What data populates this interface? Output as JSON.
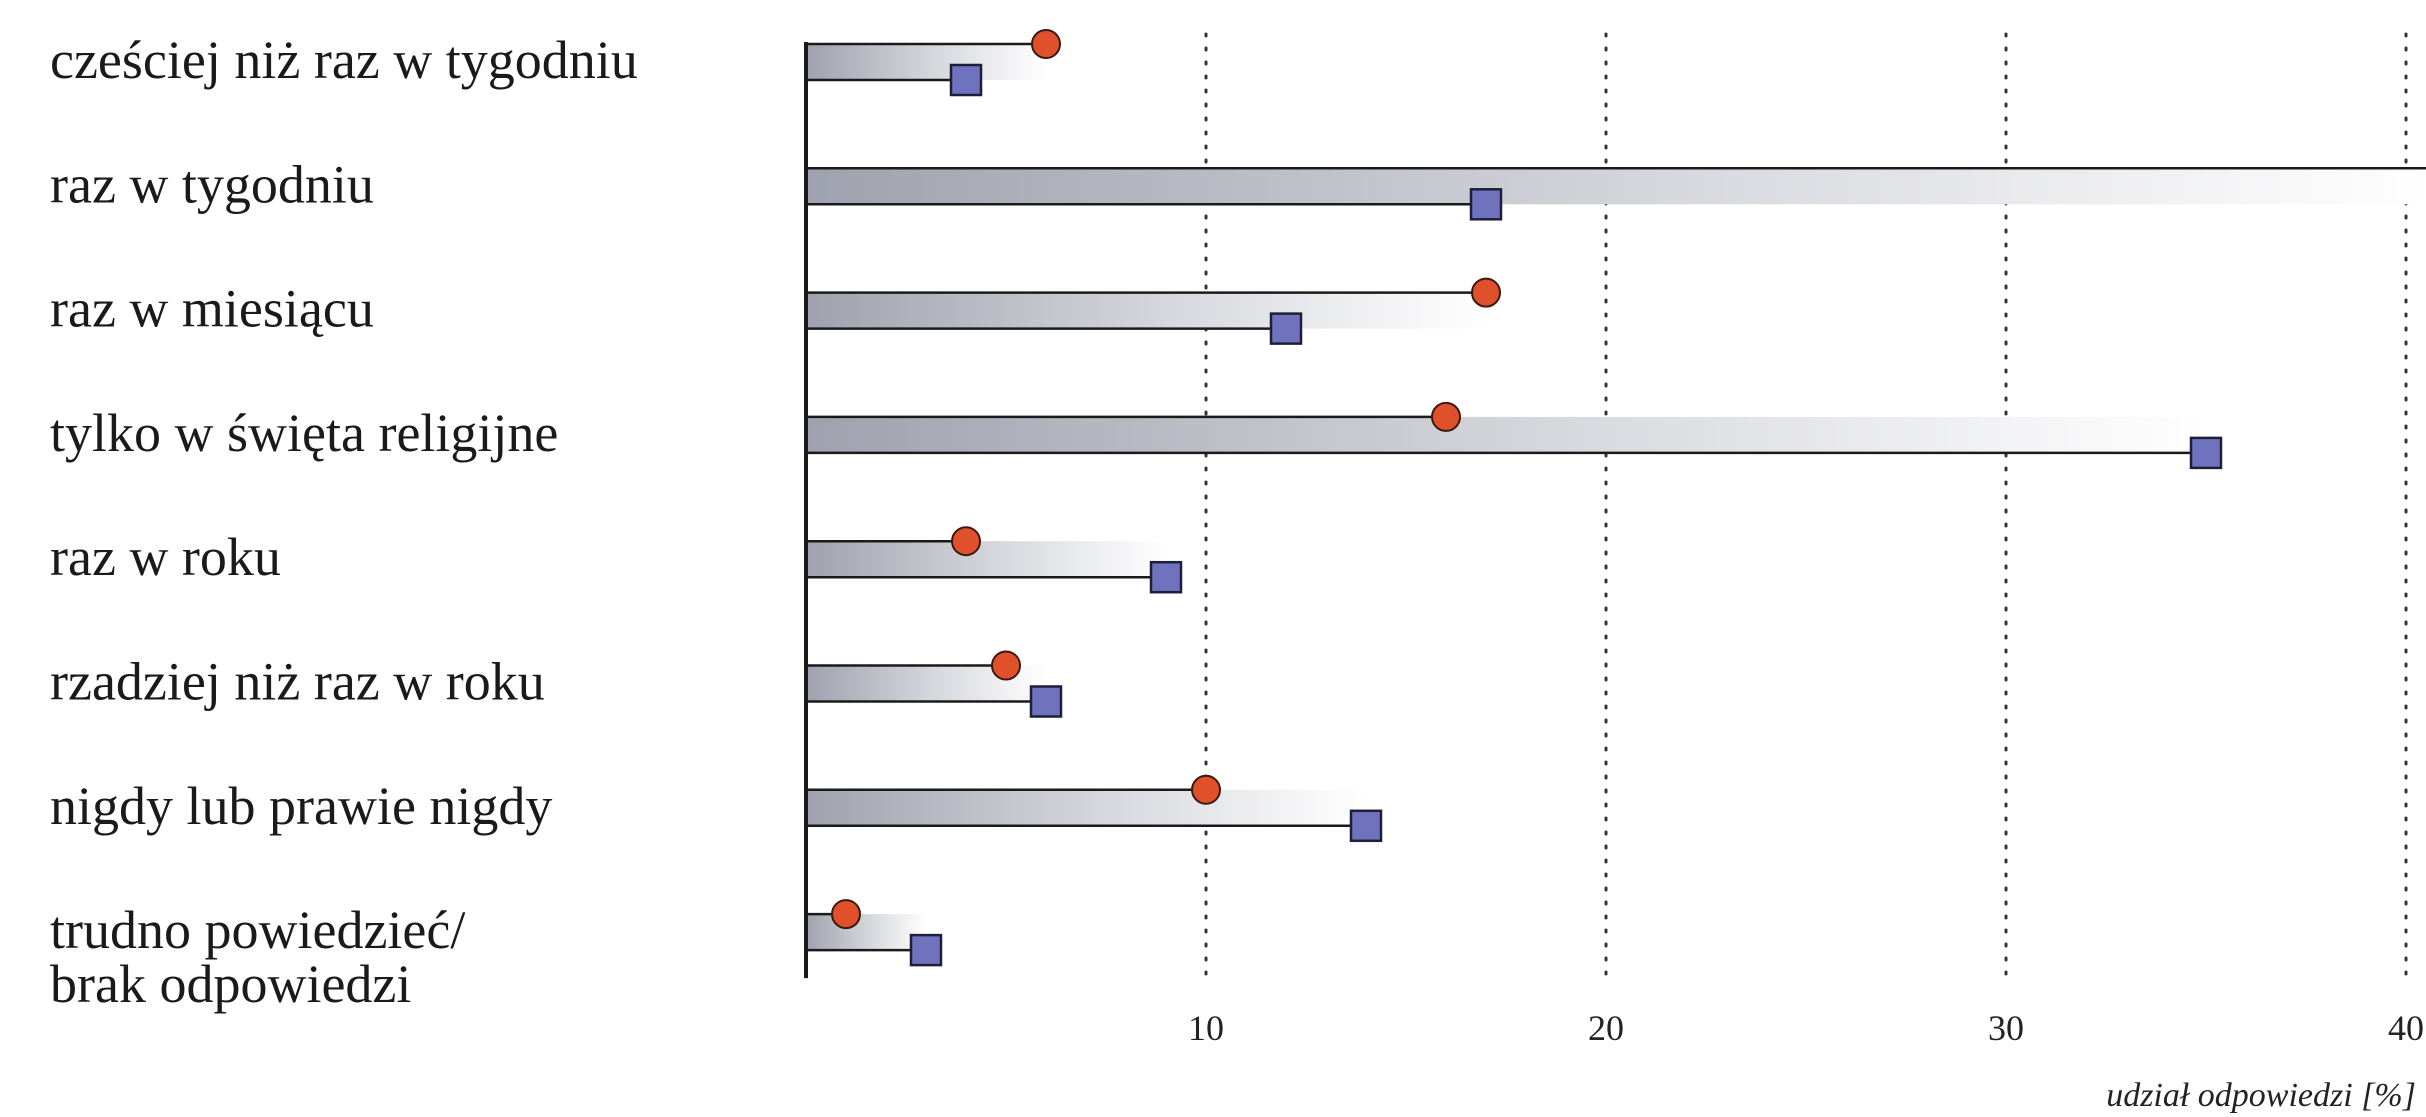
{
  "chart_data": {
    "type": "bar",
    "categories": [
      [
        "cześciej niż raz w tygodniu"
      ],
      [
        "raz w tygodniu"
      ],
      [
        "raz w miesiącu"
      ],
      [
        "tylko w święta religijne"
      ],
      [
        "raz w roku"
      ],
      [
        "rzadziej niż raz w roku"
      ],
      [
        "nigdy lub prawie nigdy"
      ],
      [
        "trudno powiedzieć/",
        "brak odpowiedzi"
      ]
    ],
    "series": [
      {
        "marker": "circle",
        "color": "#e0502a",
        "values": [
          6,
          41,
          17,
          16,
          4,
          5,
          10,
          1
        ]
      },
      {
        "marker": "square",
        "color": "#6f73bd",
        "values": [
          4,
          17,
          12,
          35,
          9,
          6,
          14,
          3
        ]
      }
    ],
    "xticks": [
      "10",
      "20",
      "30",
      "40"
    ],
    "xlabel": "udział odpowiedzi [%]",
    "xlim": [
      0,
      40.5
    ],
    "grid": "vertical dotted",
    "colors": {
      "bar_dark": "#9fa2ae",
      "bar_light": "#ffffff",
      "outline": "#1a1a1a"
    }
  }
}
